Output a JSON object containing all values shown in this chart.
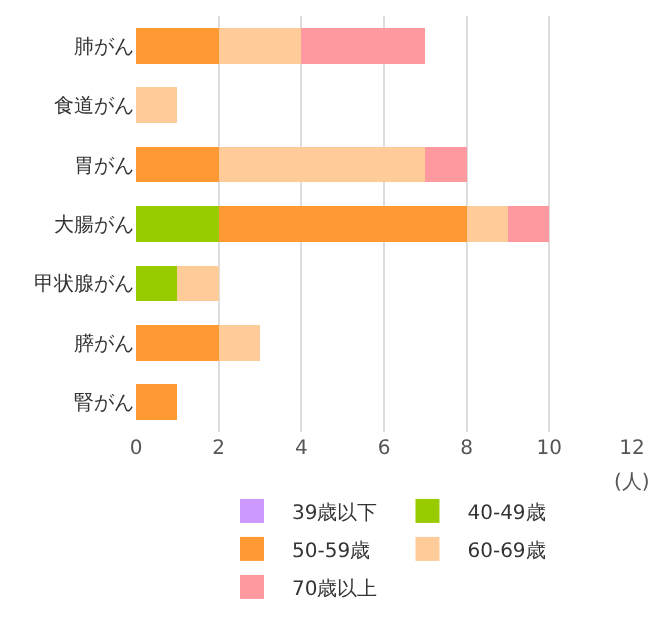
{
  "chart_data": {
    "type": "bar",
    "orientation": "horizontal",
    "stacked": true,
    "categories": [
      "肺がん",
      "食道がん",
      "胃がん",
      "大腸がん",
      "甲状腺がん",
      "膵がん",
      "腎がん"
    ],
    "series": [
      {
        "name": "39歳以下",
        "color": "#cc99ff",
        "values": [
          0,
          0,
          0,
          0,
          0,
          0,
          0
        ]
      },
      {
        "name": "40-49歳",
        "color": "#99cc00",
        "values": [
          0,
          0,
          0,
          2,
          1,
          0,
          0
        ]
      },
      {
        "name": "50-59歳",
        "color": "#ff9933",
        "values": [
          2,
          0,
          2,
          6,
          0,
          2,
          1
        ]
      },
      {
        "name": "60-69歳",
        "color": "#ffcc99",
        "values": [
          2,
          1,
          5,
          1,
          1,
          1,
          0
        ]
      },
      {
        "name": "70歳以上",
        "color": "#ff99a0",
        "values": [
          3,
          0,
          1,
          1,
          0,
          0,
          0
        ]
      }
    ],
    "xlabel": "(人)",
    "xlim": [
      0,
      12
    ],
    "xticks": [
      0,
      2,
      4,
      6,
      8,
      10,
      12
    ],
    "grid": "x",
    "legend": "bottom"
  }
}
